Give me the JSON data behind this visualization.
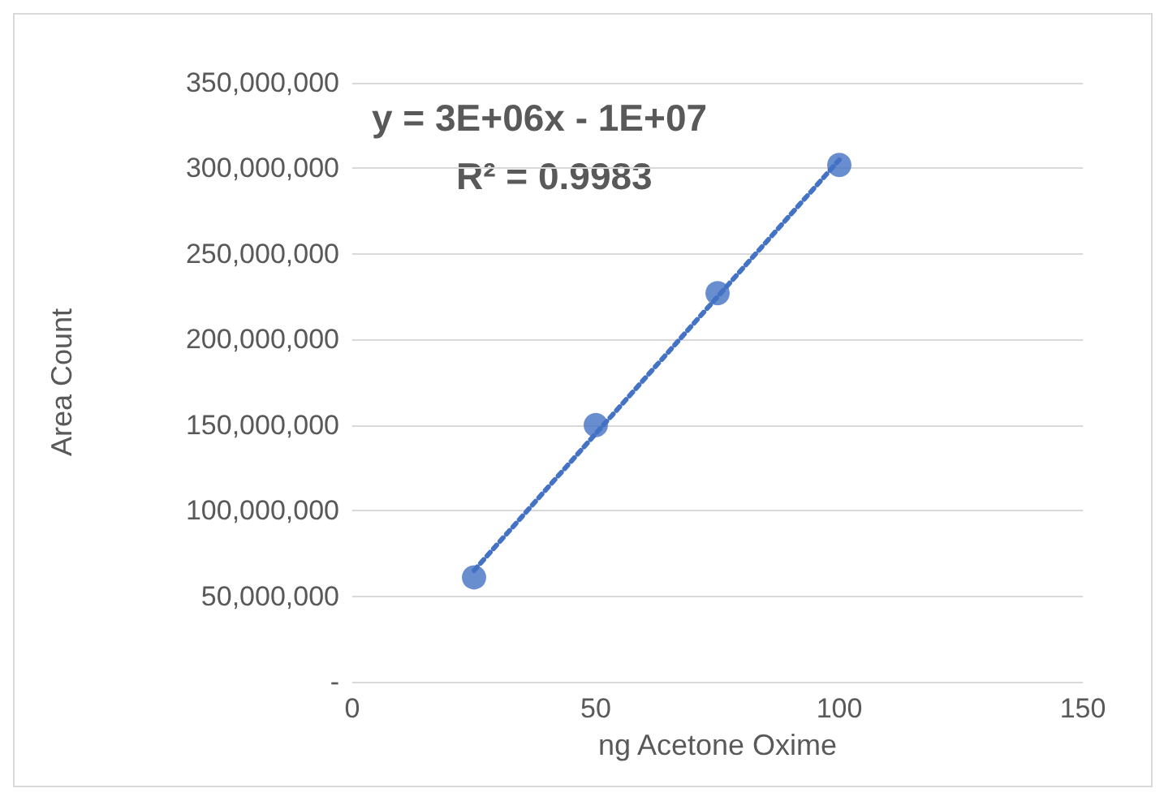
{
  "chart_data": {
    "type": "scatter",
    "xlabel": "ng Acetone Oxime",
    "ylabel": "Area Count",
    "annotations": [
      "y = 3E+06x - 1E+07",
      "R² = 0.9983"
    ],
    "series": [
      {
        "color": "#4472c4",
        "x": [
          25,
          50,
          75,
          100
        ],
        "values": [
          61000000,
          150000000,
          227000000,
          302000000
        ],
        "marker": "circle"
      },
      {
        "type": "line",
        "color": "#4472c4",
        "x": [
          25,
          100
        ],
        "values": [
          65000000,
          305000000
        ],
        "marker": "none",
        "line_style": "dotted"
      }
    ],
    "xlim": [
      0,
      150
    ],
    "xticks": [
      0,
      50,
      100,
      150
    ],
    "ylim": [
      0,
      350000000
    ],
    "yticks": [
      {
        "value": 0,
        "label": "-"
      },
      {
        "value": 50000000,
        "label": "50,000,000"
      },
      {
        "value": 100000000,
        "label": "100,000,000"
      },
      {
        "value": 150000000,
        "label": "150,000,000"
      },
      {
        "value": 200000000,
        "label": "200,000,000"
      },
      {
        "value": 250000000,
        "label": "250,000,000"
      },
      {
        "value": 300000000,
        "label": "300,000,000"
      },
      {
        "value": 350000000,
        "label": "350,000,000"
      }
    ],
    "grid": "y"
  }
}
